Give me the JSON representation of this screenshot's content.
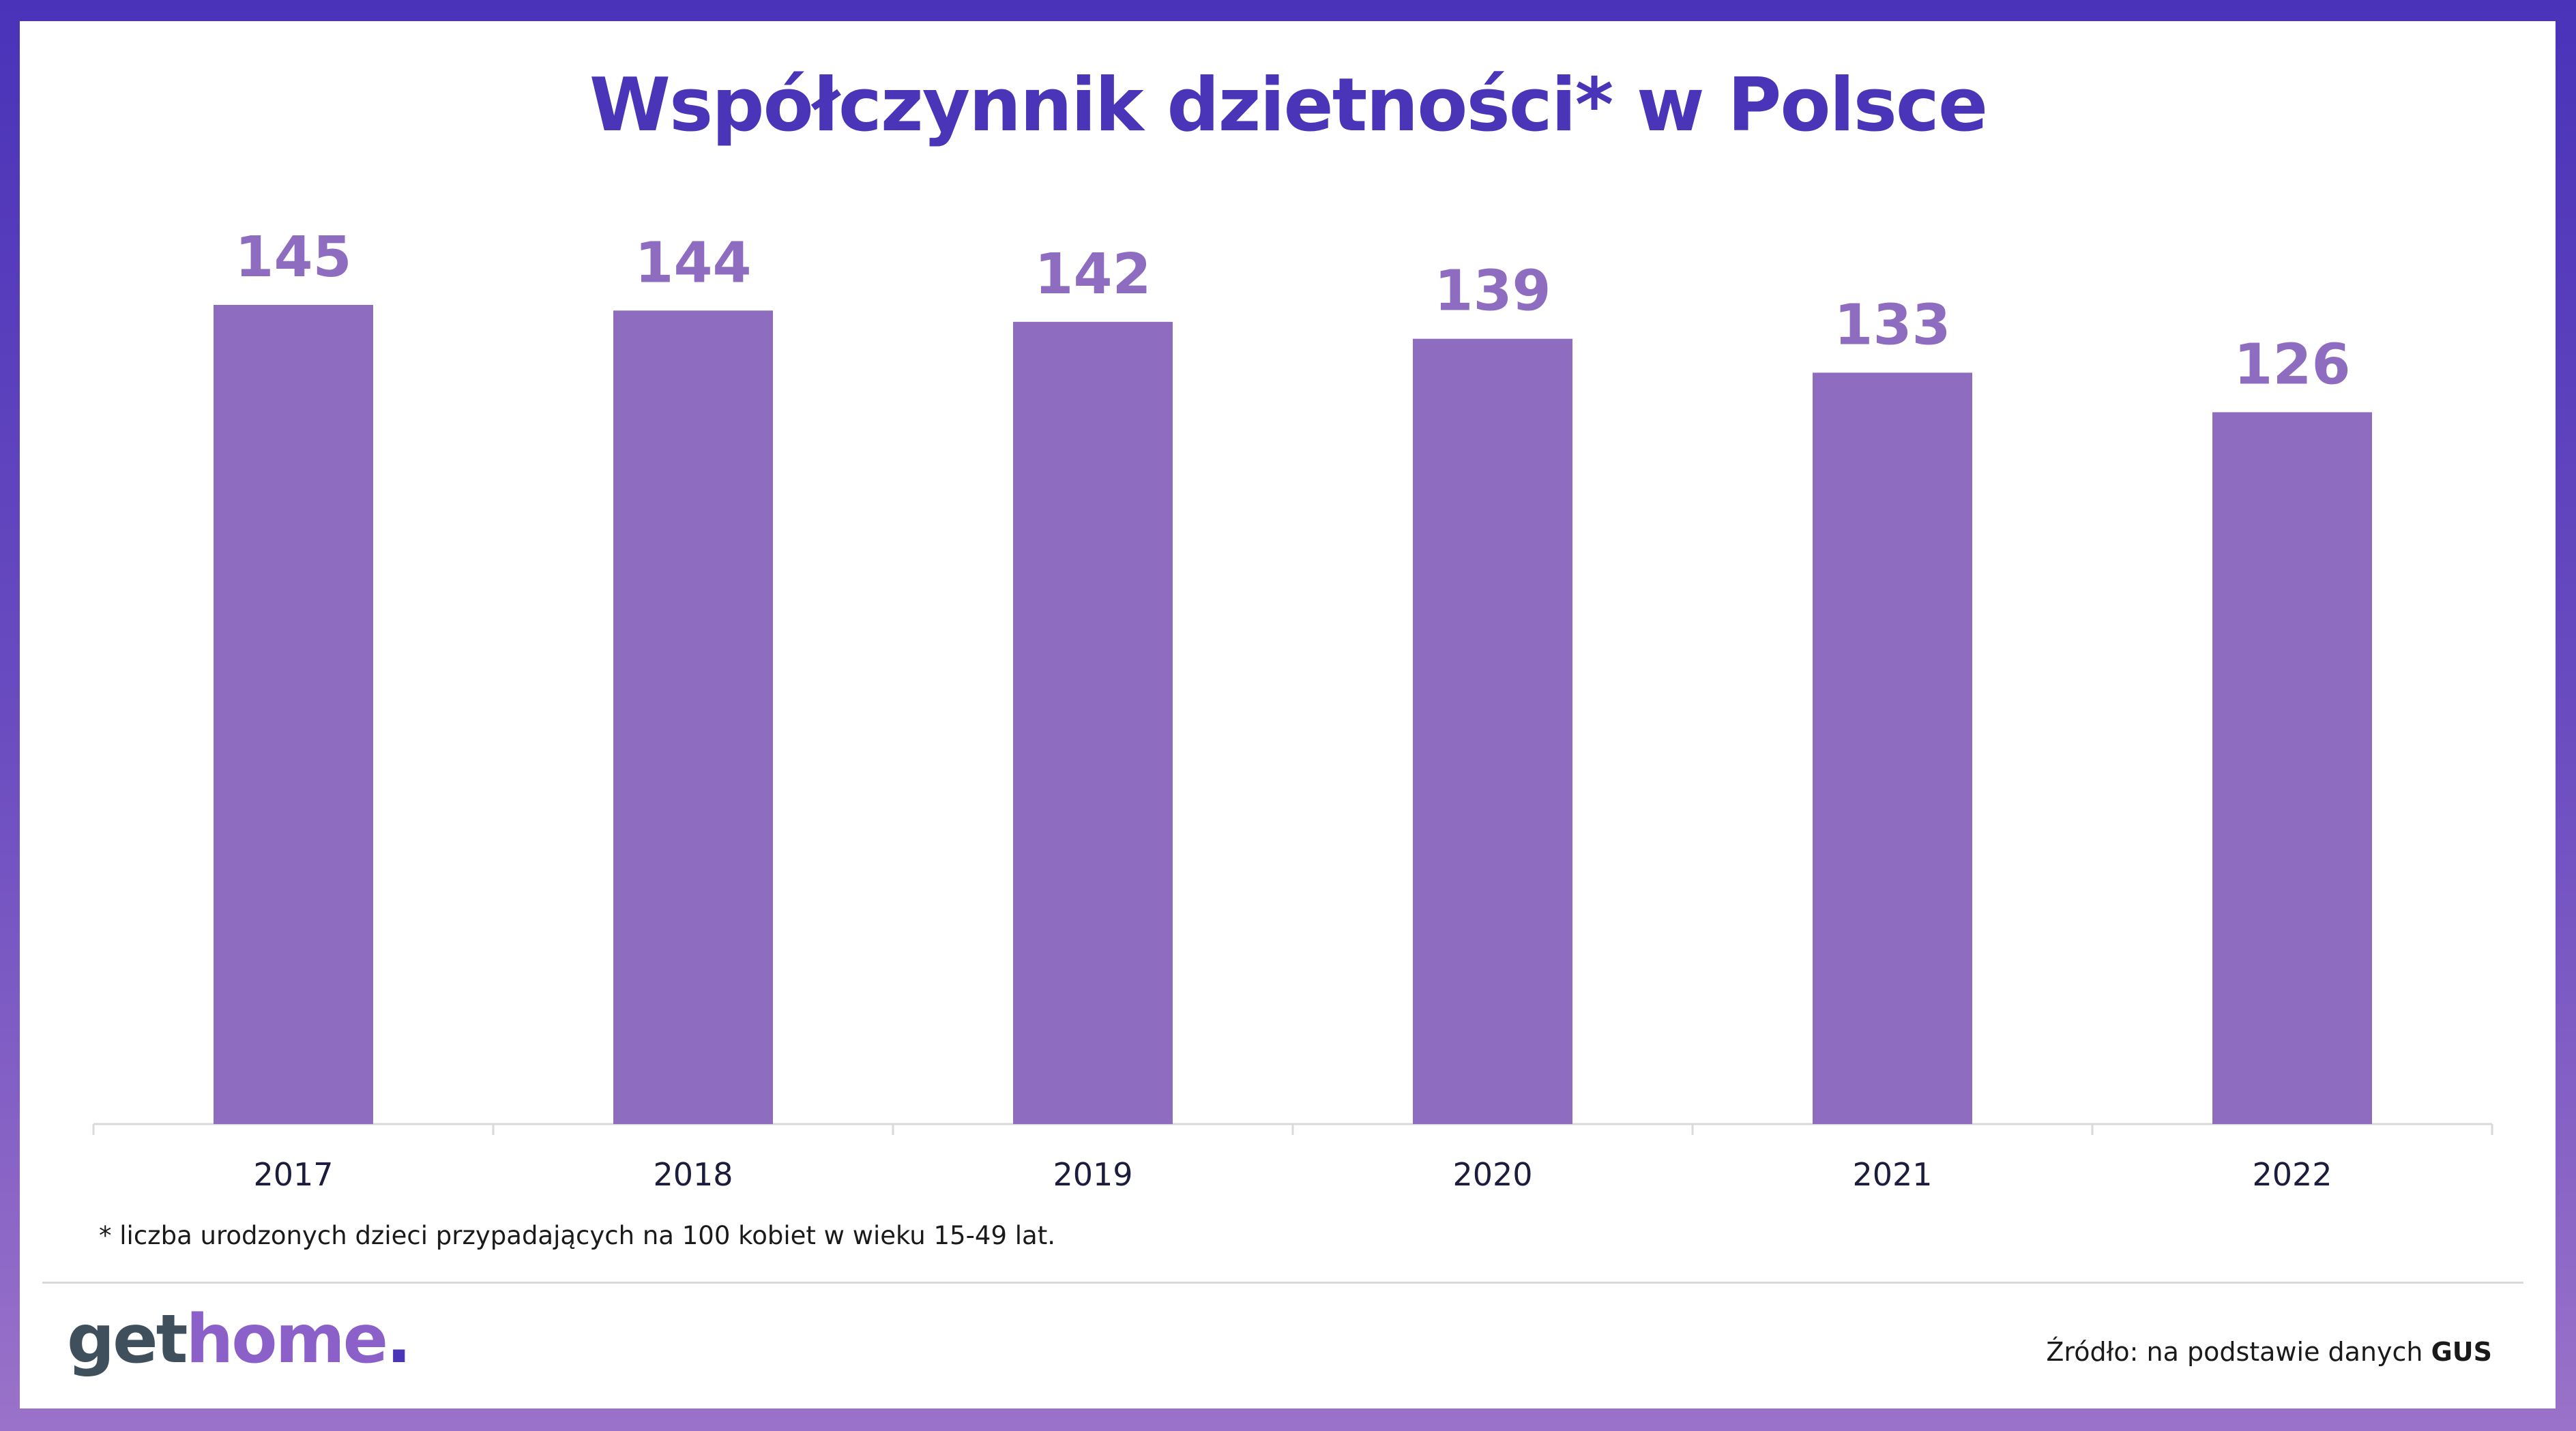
{
  "title": "Współczynnik dzietności* w Polsce",
  "footnote": "* liczba urodzonych dzieci przypadających na 100 kobiet w wieku 15-49 lat.",
  "source": {
    "prefix": "Źródło: na podstawie danych ",
    "name": "GUS"
  },
  "logo": {
    "part1": "get",
    "part2": "home",
    "dot": "."
  },
  "colors": {
    "bar": "#8e6cc0",
    "title": "#4a35b8",
    "frame": "#4a33b9"
  },
  "chart_data": {
    "type": "bar",
    "title": "Współczynnik dzietności* w Polsce",
    "categories": [
      "2017",
      "2018",
      "2019",
      "2020",
      "2021",
      "2022"
    ],
    "values": [
      145,
      144,
      142,
      139,
      133,
      126
    ],
    "xlabel": "",
    "ylabel": "",
    "ylim": [
      0,
      145
    ],
    "grid": false,
    "legend": "none"
  }
}
